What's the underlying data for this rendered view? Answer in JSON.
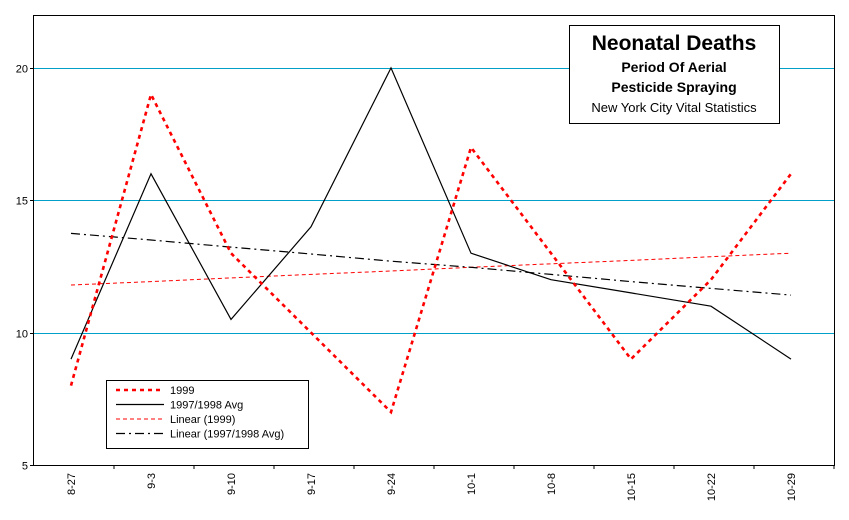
{
  "chart_data": {
    "type": "line",
    "title": "Neonatal Deaths",
    "subtitle_lines": [
      "Period Of Aerial",
      "Pesticide Spraying"
    ],
    "source": "New York City Vital Statistics",
    "categories": [
      "8-27",
      "9-3",
      "9-10",
      "9-17",
      "9-24",
      "10-1",
      "10-8",
      "10-15",
      "10-22",
      "10-29"
    ],
    "ylim": [
      5,
      22
    ],
    "yticks": [
      5,
      10,
      15,
      20
    ],
    "grid": true,
    "legend_position": "bottom-left",
    "series": [
      {
        "name": "1999",
        "values": [
          8,
          19,
          13,
          10,
          7,
          17,
          13,
          9,
          12,
          16
        ],
        "color": "#ff0000",
        "style": "dotted-thick"
      },
      {
        "name": "1997/1998 Avg",
        "values": [
          9,
          16,
          10.5,
          14,
          20,
          13,
          12,
          11.5,
          11,
          9
        ],
        "color": "#000000",
        "style": "solid"
      },
      {
        "name": "Linear (1999)",
        "values": [
          11.8,
          11.93,
          12.07,
          12.2,
          12.33,
          12.47,
          12.6,
          12.73,
          12.87,
          13
        ],
        "color": "#ff0000",
        "style": "dashed-thin"
      },
      {
        "name": "Linear (1997/1998 Avg)",
        "values": [
          13.75,
          13.5,
          13.23,
          12.97,
          12.7,
          12.47,
          12.2,
          11.93,
          11.67,
          11.42
        ],
        "color": "#000000",
        "style": "dash-dot"
      }
    ],
    "colors": {
      "grid": "#00a0c8",
      "axis": "#000000"
    }
  }
}
